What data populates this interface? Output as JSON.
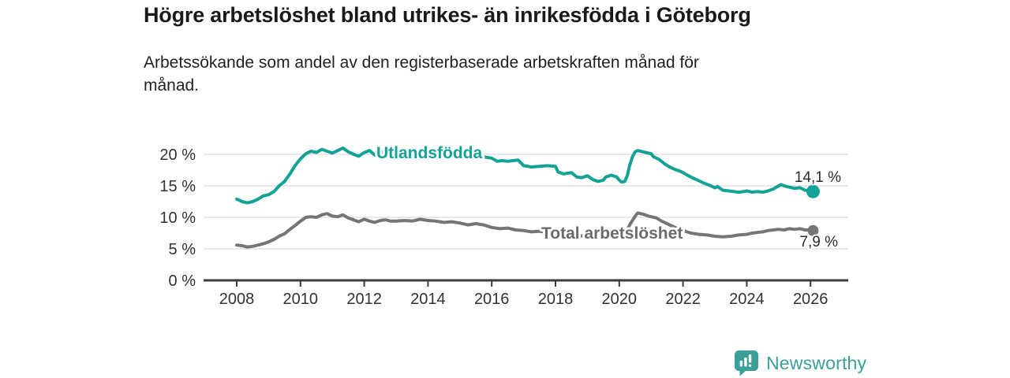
{
  "footer": {
    "brand": "Newsworthy",
    "logo_icon": "newsworthy-speech-bubble-bar-chart-icon"
  },
  "colors": {
    "accent_teal": "#12a296",
    "logo_teal": "#3a9f98",
    "series_gray": "#757575",
    "series_gray_label": "#6b6b6b",
    "grid": "#dadada",
    "axis": "#3c3c3c",
    "text_dark": "#1a1a1a"
  },
  "chart_data": {
    "type": "line",
    "title": "Högre arbetslöshet bland utrikes- än inrikesfödda i Göteborg",
    "subtitle": "Arbetssökande som andel av den registerbaserade arbetskraften månad för månad.",
    "unit": "%",
    "grid": "horizontal",
    "legend_position": "inline-labels",
    "xlim": [
      2007,
      2027.2
    ],
    "ylim": [
      0,
      22.5
    ],
    "x_ticks": [
      2008,
      2010,
      2012,
      2014,
      2016,
      2018,
      2020,
      2022,
      2024,
      2026
    ],
    "y_ticks": [
      {
        "value": 0,
        "label": "0 %"
      },
      {
        "value": 5,
        "label": "5 %"
      },
      {
        "value": 10,
        "label": "10 %"
      },
      {
        "value": 15,
        "label": "15 %"
      },
      {
        "value": 20,
        "label": "20 %"
      }
    ],
    "series": [
      {
        "id": "utlandsfodda",
        "name": "Utlandsfödda",
        "color": "#12a296",
        "end_value": 14.1,
        "end_label": "14,1 %",
        "points": [
          [
            2008.0,
            12.9
          ],
          [
            2008.17,
            12.5
          ],
          [
            2008.33,
            12.3
          ],
          [
            2008.5,
            12.5
          ],
          [
            2008.67,
            12.9
          ],
          [
            2008.83,
            13.4
          ],
          [
            2009.0,
            13.6
          ],
          [
            2009.17,
            14.1
          ],
          [
            2009.33,
            15.0
          ],
          [
            2009.5,
            15.7
          ],
          [
            2009.67,
            16.9
          ],
          [
            2009.83,
            18.2
          ],
          [
            2010.0,
            19.3
          ],
          [
            2010.17,
            20.1
          ],
          [
            2010.33,
            20.5
          ],
          [
            2010.5,
            20.3
          ],
          [
            2010.67,
            20.8
          ],
          [
            2010.83,
            20.5
          ],
          [
            2011.0,
            20.2
          ],
          [
            2011.17,
            20.6
          ],
          [
            2011.33,
            21.0
          ],
          [
            2011.5,
            20.4
          ],
          [
            2011.67,
            20.0
          ],
          [
            2011.83,
            19.7
          ],
          [
            2012.0,
            20.3
          ],
          [
            2012.17,
            20.6
          ],
          [
            2012.33,
            19.9
          ],
          [
            2012.5,
            20.2
          ],
          [
            2012.67,
            20.6
          ],
          [
            2012.83,
            20.4
          ],
          [
            2013.0,
            20.3
          ],
          [
            2013.25,
            20.5
          ],
          [
            2013.5,
            20.2
          ],
          [
            2013.75,
            20.4
          ],
          [
            2014.0,
            20.1
          ],
          [
            2014.25,
            20.0
          ],
          [
            2014.5,
            19.8
          ],
          [
            2014.75,
            19.7
          ],
          [
            2015.0,
            19.6
          ],
          [
            2015.25,
            19.4
          ],
          [
            2015.5,
            19.5
          ],
          [
            2015.75,
            19.6
          ],
          [
            2016.0,
            19.4
          ],
          [
            2016.17,
            18.9
          ],
          [
            2016.33,
            19.0
          ],
          [
            2016.5,
            18.9
          ],
          [
            2016.67,
            19.0
          ],
          [
            2016.83,
            19.1
          ],
          [
            2017.0,
            18.2
          ],
          [
            2017.25,
            18.0
          ],
          [
            2017.5,
            18.1
          ],
          [
            2017.75,
            18.2
          ],
          [
            2018.0,
            18.1
          ],
          [
            2018.08,
            17.2
          ],
          [
            2018.25,
            16.9
          ],
          [
            2018.5,
            17.1
          ],
          [
            2018.67,
            16.4
          ],
          [
            2018.83,
            16.3
          ],
          [
            2019.0,
            16.6
          ],
          [
            2019.17,
            16.0
          ],
          [
            2019.33,
            15.7
          ],
          [
            2019.5,
            15.9
          ],
          [
            2019.58,
            16.4
          ],
          [
            2019.75,
            16.7
          ],
          [
            2019.92,
            16.4
          ],
          [
            2020.0,
            15.9
          ],
          [
            2020.08,
            15.6
          ],
          [
            2020.17,
            15.7
          ],
          [
            2020.25,
            16.6
          ],
          [
            2020.33,
            18.3
          ],
          [
            2020.42,
            19.7
          ],
          [
            2020.5,
            20.4
          ],
          [
            2020.58,
            20.6
          ],
          [
            2020.75,
            20.4
          ],
          [
            2020.92,
            20.2
          ],
          [
            2021.0,
            20.1
          ],
          [
            2021.08,
            19.6
          ],
          [
            2021.25,
            19.2
          ],
          [
            2021.42,
            18.5
          ],
          [
            2021.58,
            18.0
          ],
          [
            2021.75,
            17.6
          ],
          [
            2021.92,
            17.3
          ],
          [
            2022.0,
            17.1
          ],
          [
            2022.17,
            16.6
          ],
          [
            2022.33,
            16.2
          ],
          [
            2022.5,
            15.8
          ],
          [
            2022.67,
            15.4
          ],
          [
            2022.83,
            15.1
          ],
          [
            2023.0,
            14.7
          ],
          [
            2023.08,
            14.9
          ],
          [
            2023.25,
            14.3
          ],
          [
            2023.42,
            14.2
          ],
          [
            2023.58,
            14.1
          ],
          [
            2023.75,
            14.0
          ],
          [
            2023.92,
            14.1
          ],
          [
            2024.0,
            14.2
          ],
          [
            2024.17,
            14.0
          ],
          [
            2024.33,
            14.1
          ],
          [
            2024.5,
            14.0
          ],
          [
            2024.67,
            14.2
          ],
          [
            2024.83,
            14.5
          ],
          [
            2025.0,
            15.0
          ],
          [
            2025.08,
            15.2
          ],
          [
            2025.17,
            15.0
          ],
          [
            2025.33,
            14.8
          ],
          [
            2025.5,
            14.6
          ],
          [
            2025.67,
            14.7
          ],
          [
            2025.83,
            14.3
          ],
          [
            2026.0,
            14.2
          ],
          [
            2026.08,
            14.1
          ]
        ]
      },
      {
        "id": "total",
        "name": "Total arbetslöshet",
        "color": "#757575",
        "end_value": 7.9,
        "end_label": "7,9 %",
        "points": [
          [
            2008.0,
            5.6
          ],
          [
            2008.17,
            5.5
          ],
          [
            2008.33,
            5.3
          ],
          [
            2008.5,
            5.4
          ],
          [
            2008.67,
            5.6
          ],
          [
            2008.83,
            5.8
          ],
          [
            2009.0,
            6.1
          ],
          [
            2009.17,
            6.5
          ],
          [
            2009.33,
            7.0
          ],
          [
            2009.5,
            7.4
          ],
          [
            2009.67,
            8.1
          ],
          [
            2009.83,
            8.7
          ],
          [
            2010.0,
            9.4
          ],
          [
            2010.17,
            10.0
          ],
          [
            2010.33,
            10.1
          ],
          [
            2010.5,
            10.0
          ],
          [
            2010.67,
            10.4
          ],
          [
            2010.83,
            10.6
          ],
          [
            2011.0,
            10.2
          ],
          [
            2011.17,
            10.1
          ],
          [
            2011.33,
            10.4
          ],
          [
            2011.5,
            9.9
          ],
          [
            2011.67,
            9.6
          ],
          [
            2011.83,
            9.3
          ],
          [
            2012.0,
            9.7
          ],
          [
            2012.17,
            9.4
          ],
          [
            2012.33,
            9.2
          ],
          [
            2012.5,
            9.5
          ],
          [
            2012.67,
            9.6
          ],
          [
            2012.83,
            9.4
          ],
          [
            2013.0,
            9.4
          ],
          [
            2013.25,
            9.5
          ],
          [
            2013.5,
            9.4
          ],
          [
            2013.75,
            9.7
          ],
          [
            2014.0,
            9.5
          ],
          [
            2014.25,
            9.4
          ],
          [
            2014.5,
            9.2
          ],
          [
            2014.75,
            9.3
          ],
          [
            2015.0,
            9.1
          ],
          [
            2015.25,
            8.8
          ],
          [
            2015.5,
            9.0
          ],
          [
            2015.75,
            8.8
          ],
          [
            2016.0,
            8.4
          ],
          [
            2016.25,
            8.2
          ],
          [
            2016.5,
            8.3
          ],
          [
            2016.75,
            8.0
          ],
          [
            2017.0,
            7.9
          ],
          [
            2017.25,
            7.7
          ],
          [
            2017.5,
            7.8
          ],
          [
            2017.75,
            7.6
          ],
          [
            2018.0,
            7.4
          ],
          [
            2018.25,
            7.3
          ],
          [
            2018.5,
            7.2
          ],
          [
            2018.75,
            7.1
          ],
          [
            2019.0,
            7.0
          ],
          [
            2019.25,
            6.9
          ],
          [
            2019.5,
            6.8
          ],
          [
            2019.75,
            6.9
          ],
          [
            2020.0,
            7.0
          ],
          [
            2020.17,
            7.2
          ],
          [
            2020.33,
            8.8
          ],
          [
            2020.5,
            10.2
          ],
          [
            2020.58,
            10.7
          ],
          [
            2020.75,
            10.5
          ],
          [
            2020.92,
            10.2
          ],
          [
            2021.0,
            10.1
          ],
          [
            2021.17,
            9.9
          ],
          [
            2021.33,
            9.4
          ],
          [
            2021.5,
            9.0
          ],
          [
            2021.75,
            8.4
          ],
          [
            2022.0,
            7.9
          ],
          [
            2022.25,
            7.5
          ],
          [
            2022.5,
            7.3
          ],
          [
            2022.75,
            7.2
          ],
          [
            2023.0,
            7.0
          ],
          [
            2023.25,
            6.9
          ],
          [
            2023.5,
            7.0
          ],
          [
            2023.75,
            7.2
          ],
          [
            2024.0,
            7.3
          ],
          [
            2024.17,
            7.5
          ],
          [
            2024.33,
            7.6
          ],
          [
            2024.5,
            7.7
          ],
          [
            2024.67,
            7.9
          ],
          [
            2024.83,
            8.0
          ],
          [
            2025.0,
            8.1
          ],
          [
            2025.17,
            8.0
          ],
          [
            2025.33,
            8.2
          ],
          [
            2025.5,
            8.1
          ],
          [
            2025.67,
            8.2
          ],
          [
            2025.83,
            8.0
          ],
          [
            2026.0,
            8.0
          ],
          [
            2026.08,
            7.9
          ]
        ]
      }
    ]
  }
}
